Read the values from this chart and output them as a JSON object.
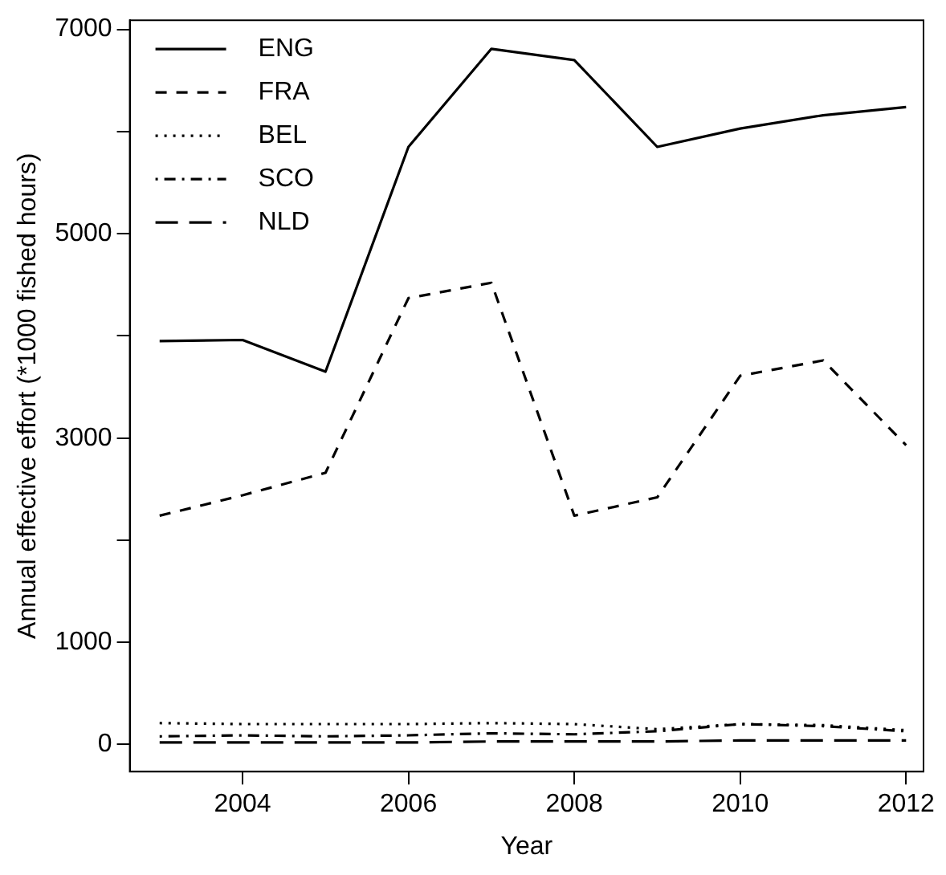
{
  "chart_data": {
    "type": "line",
    "xlabel": "Year",
    "ylabel": "Annual effective effort (*1000 fished hours)",
    "x": [
      2003,
      2004,
      2005,
      2006,
      2007,
      2008,
      2009,
      2010,
      2011,
      2012
    ],
    "series": [
      {
        "name": "ENG",
        "color": "#000000",
        "line_style": "solid",
        "values": [
          3950,
          3960,
          3650,
          5850,
          6810,
          6700,
          5850,
          6030,
          6160,
          6240
        ]
      },
      {
        "name": "FRA",
        "color": "#000000",
        "line_style": "dashed",
        "values": [
          2240,
          2440,
          2660,
          4370,
          4520,
          2240,
          2420,
          3610,
          3760,
          2930
        ]
      },
      {
        "name": "BEL",
        "color": "#000000",
        "line_style": "dotted",
        "values": [
          210,
          200,
          200,
          200,
          210,
          200,
          150,
          200,
          190,
          140
        ]
      },
      {
        "name": "SCO",
        "color": "#000000",
        "line_style": "dashdot",
        "values": [
          80,
          90,
          80,
          90,
          110,
          100,
          130,
          200,
          180,
          130
        ]
      },
      {
        "name": "NLD",
        "color": "#000000",
        "line_style": "longdash",
        "values": [
          20,
          20,
          20,
          20,
          30,
          30,
          30,
          40,
          40,
          40
        ]
      }
    ],
    "xlim": [
      2002.64,
      2012.21
    ],
    "xticks": [
      2004,
      2006,
      2008,
      2010,
      2012
    ],
    "ylim": [
      -265,
      7090
    ],
    "yticks": [
      0,
      1000,
      {
        "value": 2000,
        "label": null
      },
      3000,
      {
        "value": 4000,
        "label": null
      },
      5000,
      {
        "value": 6000,
        "label": null
      },
      7000
    ],
    "grid": false,
    "legend": "top left",
    "marker": "none"
  }
}
